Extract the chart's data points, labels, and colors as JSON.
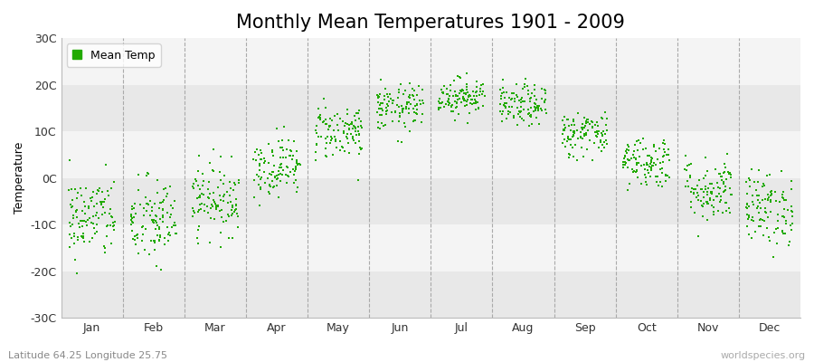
{
  "title": "Monthly Mean Temperatures 1901 - 2009",
  "ylabel": "Temperature",
  "xlabel_labels": [
    "Jan",
    "Feb",
    "Mar",
    "Apr",
    "May",
    "Jun",
    "Jul",
    "Aug",
    "Sep",
    "Oct",
    "Nov",
    "Dec"
  ],
  "subtitle": "Latitude 64.25 Longitude 25.75",
  "watermark": "worldspecies.org",
  "ylim": [
    -30,
    30
  ],
  "yticks": [
    -30,
    -20,
    -10,
    0,
    10,
    20,
    30
  ],
  "ytick_labels": [
    "-30C",
    "-20C",
    "-10C",
    "0C",
    "10C",
    "20C",
    "30C"
  ],
  "dot_color": "#22aa00",
  "bg_color": "#ffffff",
  "plot_bg_color": "#ffffff",
  "band_dark": "#e8e8e8",
  "band_light": "#f4f4f4",
  "legend_label": "Mean Temp",
  "monthly_means": [
    -8.5,
    -9.5,
    -4.5,
    2.5,
    10.0,
    15.0,
    17.5,
    15.5,
    9.5,
    3.5,
    -2.5,
    -6.5
  ],
  "monthly_stds": [
    4.5,
    4.8,
    3.8,
    3.2,
    3.0,
    2.5,
    2.0,
    2.2,
    2.5,
    2.8,
    3.5,
    4.0
  ],
  "n_years": 109,
  "seed": 42,
  "marker_size": 3,
  "title_fontsize": 15,
  "axis_fontsize": 9,
  "tick_fontsize": 9
}
